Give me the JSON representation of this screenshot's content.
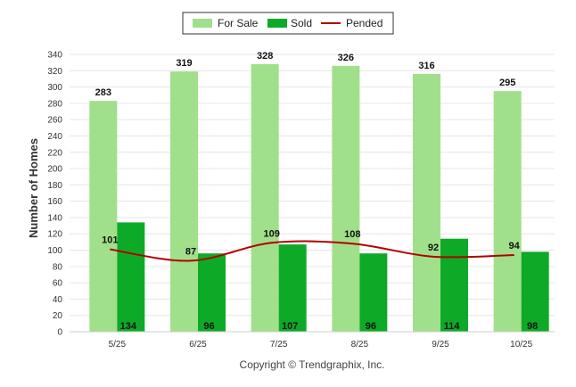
{
  "chart_data": {
    "type": "bar",
    "categories": [
      "5/25",
      "6/25",
      "7/25",
      "8/25",
      "9/25",
      "10/25"
    ],
    "series": [
      {
        "name": "For Sale",
        "type": "bar",
        "color": "#a0e08a",
        "values": [
          283,
          319,
          328,
          326,
          316,
          295
        ]
      },
      {
        "name": "Sold",
        "type": "bar",
        "color": "#0daa27",
        "values": [
          134,
          96,
          107,
          96,
          114,
          98
        ]
      },
      {
        "name": "Pended",
        "type": "line",
        "color": "#b30000",
        "values": [
          101,
          87,
          109,
          108,
          92,
          94
        ]
      }
    ],
    "ylabel": "Number of Homes",
    "xlabel": "",
    "ylim": [
      0,
      340
    ],
    "ytick_step": 20,
    "grid": true,
    "legend_position": "top-center"
  },
  "footer": {
    "copyright": "Copyright © Trendgraphix, Inc."
  }
}
